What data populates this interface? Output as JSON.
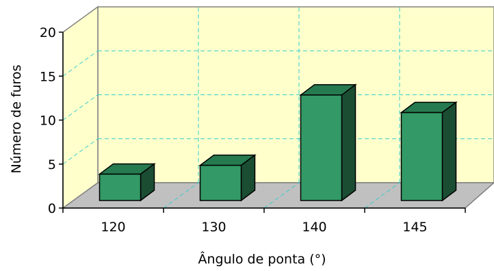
{
  "chart_data": {
    "type": "bar",
    "three_d": true,
    "categories": [
      "120",
      "130",
      "140",
      "145"
    ],
    "values": [
      3,
      4,
      12,
      10
    ],
    "xlabel": "Ângulo de ponta (°)",
    "ylabel": "Número de furos",
    "ylim": [
      0,
      20
    ],
    "yticks": [
      "0",
      "5",
      "10",
      "15",
      "20"
    ],
    "grid": true,
    "legend": "none",
    "colors": {
      "bar_front": "#339966",
      "bar_top": "#267a4f",
      "bar_side": "#1b4d33",
      "back_wall": "#ffffcc",
      "floor": "#c0c0c0",
      "grid": "#33cccc"
    }
  }
}
